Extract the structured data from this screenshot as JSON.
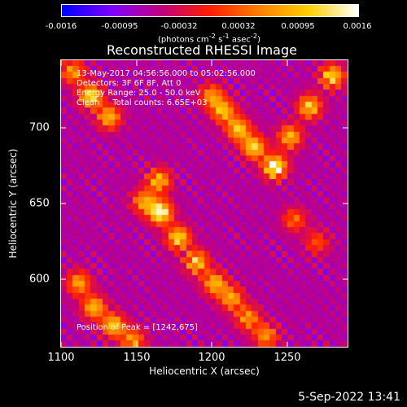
{
  "colorbar": {
    "ticks": [
      "-0.0016",
      "-0.00095",
      "-0.00032",
      "0.00032",
      "0.00095",
      "0.0016"
    ],
    "units_text": "(photons cm",
    "units_sup1": "-2",
    "units_mid": " s",
    "units_sup2": "-1",
    "units_mid2": " asec",
    "units_sup3": "-2",
    "units_end": ")"
  },
  "title": "Reconstructed RHESSI Image",
  "info": {
    "line1": "13-May-2017 04:56:56.000 to 05:02:56.000",
    "line2": "Detectors: 3F 6F 8F, Att 0",
    "line3": "Energy Range: 25.0 - 50.0 keV",
    "line4": "Clean     Total counts: 6.65E+03"
  },
  "peak": "Position of Peak = [1242,675]",
  "date": "5-Sep-2022 13:41",
  "chart_data": {
    "type": "heatmap",
    "title": "Reconstructed RHESSI Image",
    "xlabel": "Heliocentric X (arcsec)",
    "ylabel": "Heliocentric Y (arcsec)",
    "xlim": [
      1100,
      1290
    ],
    "ylim": [
      556,
      746
    ],
    "x_ticks": [
      1100,
      1150,
      1200,
      1250
    ],
    "y_ticks": [
      600,
      650,
      700
    ],
    "peak": [
      1242,
      675
    ],
    "color_range": [
      -0.0016,
      0.0016
    ],
    "colormap": [
      "#0000ff",
      "#7f00ff",
      "#c00080",
      "#ff2000",
      "#ff8000",
      "#ffd000",
      "#ffffff"
    ],
    "sources": [
      {
        "x": 1166,
        "y": 645,
        "amp": 1.0
      },
      {
        "x": 1178,
        "y": 628,
        "amp": 0.8
      },
      {
        "x": 1190,
        "y": 612,
        "amp": 0.75
      },
      {
        "x": 1202,
        "y": 598,
        "amp": 0.7
      },
      {
        "x": 1213,
        "y": 588,
        "amp": 0.65
      },
      {
        "x": 1224,
        "y": 575,
        "amp": 0.6
      },
      {
        "x": 1236,
        "y": 563,
        "amp": 0.6
      },
      {
        "x": 1165,
        "y": 666,
        "amp": 0.7
      },
      {
        "x": 1155,
        "y": 652,
        "amp": 0.6
      },
      {
        "x": 1242,
        "y": 675,
        "amp": 1.0
      },
      {
        "x": 1228,
        "y": 688,
        "amp": 0.8
      },
      {
        "x": 1218,
        "y": 700,
        "amp": 0.75
      },
      {
        "x": 1208,
        "y": 712,
        "amp": 0.7
      },
      {
        "x": 1200,
        "y": 722,
        "amp": 0.6
      },
      {
        "x": 1252,
        "y": 695,
        "amp": 0.7
      },
      {
        "x": 1265,
        "y": 715,
        "amp": 0.75
      },
      {
        "x": 1280,
        "y": 735,
        "amp": 0.8
      },
      {
        "x": 1120,
        "y": 722,
        "amp": 0.85
      },
      {
        "x": 1132,
        "y": 708,
        "amp": 0.7
      },
      {
        "x": 1108,
        "y": 738,
        "amp": 0.6
      },
      {
        "x": 1112,
        "y": 598,
        "amp": 0.65
      },
      {
        "x": 1122,
        "y": 582,
        "amp": 0.7
      },
      {
        "x": 1135,
        "y": 570,
        "amp": 0.75
      },
      {
        "x": 1148,
        "y": 560,
        "amp": 0.6
      },
      {
        "x": 1255,
        "y": 640,
        "amp": 0.45
      },
      {
        "x": 1270,
        "y": 625,
        "amp": 0.4
      }
    ]
  }
}
